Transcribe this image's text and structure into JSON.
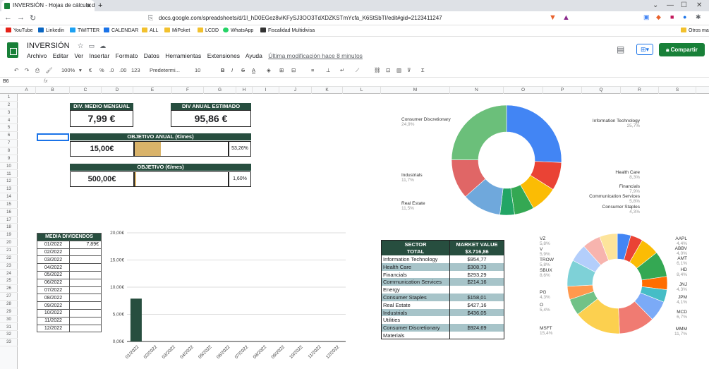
{
  "browser": {
    "tab_title": "INVERSIÓN - Hojas de cálculo de",
    "url": "docs.google.com/spreadsheets/d/1I_hD0EGez8viKFySJ3OO3TdXDZKSTmYcfa_K6StSbTI/edit#gid=2123411247",
    "bookmarks": [
      "YouTube",
      "Linkedin",
      "TWITTER",
      "CALENDAR",
      "ALL",
      "MiPoket",
      "LCDD",
      "WhatsApp",
      "Fiscalidad Multidivisa"
    ],
    "other_bookmarks": "Otros ma"
  },
  "sheets": {
    "title": "INVERSIÓN",
    "menus": [
      "Archivo",
      "Editar",
      "Ver",
      "Insertar",
      "Formato",
      "Datos",
      "Herramientas",
      "Extensiones",
      "Ayuda"
    ],
    "last_edit": "Última modificación hace 8 minutos",
    "share_label": "Compartir",
    "zoom": "100%",
    "font": "Predetermi...",
    "font_size": "10",
    "format_currency": "€",
    "format_percent": "%",
    "format_dec_less": ".0",
    "format_dec_more": ".00",
    "format_more": "123",
    "cell_ref": "B6",
    "fx": "fx"
  },
  "columns": [
    "A",
    "B",
    "C",
    "D",
    "E",
    "F",
    "G",
    "H",
    "I",
    "J",
    "K",
    "L",
    "M",
    "N",
    "O",
    "P",
    "Q",
    "R",
    "S"
  ],
  "rows": [
    "1",
    "2",
    "3",
    "4",
    "5",
    "6",
    "7",
    "8",
    "9",
    "10",
    "11",
    "12",
    "13",
    "14",
    "15",
    "16",
    "17",
    "18",
    "19",
    "20",
    "21",
    "22",
    "23",
    "24",
    "25",
    "26",
    "27",
    "28",
    "29",
    "30",
    "31",
    "32",
    "33"
  ],
  "kpi": {
    "div_medio_label": "DIV. MEDIO MENSUAL",
    "div_medio_value": "7,99 €",
    "div_anual_label": "DIV ANUAL ESTIMADO",
    "div_anual_value": "95,86 €",
    "obj_anual_label": "OBJETIVO ANUAL (€/mes)",
    "obj_anual_value": "15,00€",
    "obj_anual_pct": "53,26%",
    "obj_anual_fill": 0.5326,
    "obj_label": "OBJETIVO (€/mes)",
    "obj_value": "500,00€",
    "obj_pct": "1,60%",
    "obj_fill": 0.016
  },
  "dividends": {
    "header": "MEDIA DIVIDENDOS",
    "rows": [
      {
        "month": "01/2022",
        "value": "7,89€"
      },
      {
        "month": "02/2022",
        "value": ""
      },
      {
        "month": "03/2022",
        "value": ""
      },
      {
        "month": "04/2022",
        "value": ""
      },
      {
        "month": "05/2022",
        "value": ""
      },
      {
        "month": "06/2022",
        "value": ""
      },
      {
        "month": "07/2022",
        "value": ""
      },
      {
        "month": "08/2022",
        "value": ""
      },
      {
        "month": "09/2022",
        "value": ""
      },
      {
        "month": "10/2022",
        "value": ""
      },
      {
        "month": "11/2022",
        "value": ""
      },
      {
        "month": "12/2022",
        "value": ""
      }
    ]
  },
  "sector_table": {
    "h1": "SECTOR",
    "h2": "MARKET VALUE",
    "total_label": "TOTAL",
    "total_value": "$3.716,86",
    "rows": [
      {
        "sector": "Information Technology",
        "value": "$954,77"
      },
      {
        "sector": "Health Care",
        "value": "$308,73"
      },
      {
        "sector": "Financials",
        "value": "$293,29"
      },
      {
        "sector": "Communication Services",
        "value": "$214,16"
      },
      {
        "sector": "Energy",
        "value": ""
      },
      {
        "sector": "Consumer Staples",
        "value": "$158,01"
      },
      {
        "sector": "Real Estate",
        "value": "$427,16"
      },
      {
        "sector": "Industrials",
        "value": "$436,05"
      },
      {
        "sector": "Utilities",
        "value": ""
      },
      {
        "sector": "Consumer Discretionary",
        "value": "$924,69"
      },
      {
        "sector": "Materials",
        "value": ""
      }
    ]
  },
  "colors": {
    "dark_green": "#274e3f",
    "gold": "#d9b36a",
    "band": "#a7c4c9"
  },
  "chart_data": [
    {
      "type": "bar",
      "categories": [
        "01/2022",
        "02/2022",
        "03/2022",
        "04/2022",
        "05/2022",
        "06/2022",
        "07/2022",
        "08/2022",
        "09/2022",
        "10/2022",
        "11/2022",
        "12/2022"
      ],
      "values": [
        7.89,
        0,
        0,
        0,
        0,
        0,
        0,
        0,
        0,
        0,
        0,
        0
      ],
      "ylim": [
        0,
        20
      ],
      "yticks": [
        "0,00€",
        "5,00€",
        "10,00€",
        "15,00€",
        "20,00€"
      ],
      "ytick_values": [
        0,
        5,
        10,
        15,
        20
      ],
      "color": "#274e3f",
      "grid": true
    },
    {
      "type": "pie",
      "donut": true,
      "labels": [
        "Information Technology",
        "Health Care",
        "Financials",
        "Communication Services",
        "Consumer Staples",
        "Real Estate",
        "Industrials",
        "Consumer Discretionary"
      ],
      "values": [
        25.7,
        8.3,
        7.9,
        5.8,
        4.3,
        11.5,
        11.7,
        24.9
      ],
      "pct_labels": [
        "25,7%",
        "8,3%",
        "7,9%",
        "5,8%",
        "4,3%",
        "11,5%",
        "11,7%",
        "24,9%"
      ],
      "colors": [
        "#4285f4",
        "#ea4335",
        "#fbbc04",
        "#34a853",
        "#22a565",
        "#6fa8dc",
        "#e06666",
        "#6bbf7a"
      ]
    },
    {
      "type": "pie",
      "donut": true,
      "labels": [
        "AAPL",
        "ABBV",
        "AMT",
        "HD",
        "JNJ",
        "JPM",
        "MCD",
        "MMM",
        "MSFT",
        "O",
        "PG",
        "SBUX",
        "TROW",
        "V",
        "VZ"
      ],
      "values": [
        4.4,
        4.0,
        6.1,
        8.4,
        4.3,
        4.1,
        6.7,
        11.7,
        15.4,
        5.4,
        4.3,
        8.6,
        5.8,
        5.9,
        5.8
      ],
      "pct_labels": [
        "4,4%",
        "4,0%",
        "6,1%",
        "8,4%",
        "4,3%",
        "4,1%",
        "6,7%",
        "11,7%",
        "15,4%",
        "5,4%",
        "4,3%",
        "8,6%",
        "5,8%",
        "5,9%",
        "5,8%"
      ],
      "colors": [
        "#4285f4",
        "#ea4335",
        "#fbbc04",
        "#34a853",
        "#ff6d01",
        "#46bdc6",
        "#7baaf7",
        "#f07b72",
        "#fcd04f",
        "#71c287",
        "#ff994d",
        "#7ed1d7",
        "#b3cefb",
        "#f7b4ae",
        "#fde49b"
      ]
    }
  ]
}
